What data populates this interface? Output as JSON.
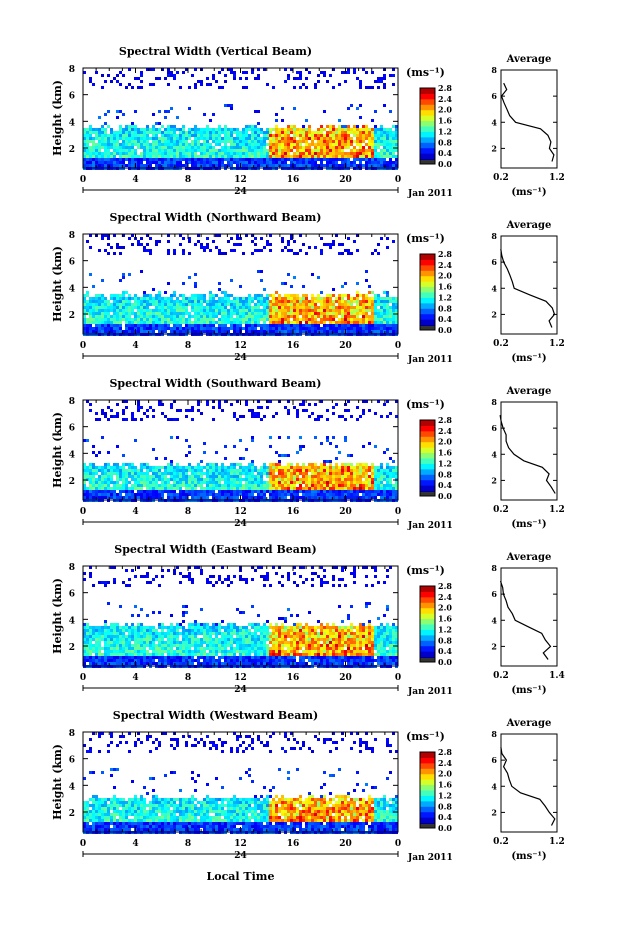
{
  "figure": {
    "x_axis_title": "Local Time",
    "colorbar_unit": "(ms⁻¹)",
    "avg_title": "Average",
    "avg_unit": "(ms⁻¹)",
    "date_label": "Jan 2011",
    "day_label": "24",
    "height_label": "Height (km)"
  },
  "chart_data": [
    {
      "type": "heatmap",
      "title": "Spectral Width (Vertical Beam)",
      "xlabel": "",
      "ylabel": "Height (km)",
      "xlim": [
        0,
        24
      ],
      "x_ticks": [
        "0",
        "4",
        "8",
        "12",
        "16",
        "20",
        "0"
      ],
      "ylim": [
        0.5,
        8
      ],
      "y_ticks": [
        "2",
        "4",
        "6",
        "8"
      ],
      "colorbar": {
        "ticks": [
          "0.0",
          "0.4",
          "0.8",
          "1.2",
          "1.6",
          "2.0",
          "2.4",
          "2.8"
        ],
        "range": [
          0,
          2.8
        ]
      },
      "echo_top_km": 3.7,
      "avg_profile": {
        "title": "Average",
        "xlim": [
          0.2,
          1.2
        ],
        "x_ticks": [
          "0.2",
          "1.2"
        ],
        "y_ticks": [
          "2",
          "4",
          "6",
          "8"
        ],
        "height_km": [
          1.0,
          1.5,
          2.0,
          2.5,
          3.0,
          3.5,
          4.0,
          4.5,
          5.0,
          5.5,
          6.0,
          6.5,
          7.0
        ],
        "width_ms": [
          1.1,
          1.15,
          1.05,
          1.1,
          1.05,
          0.9,
          0.45,
          0.35,
          0.3,
          0.25,
          0.2,
          0.3,
          0.25
        ]
      }
    },
    {
      "type": "heatmap",
      "title": "Spectral Width (Northward Beam)",
      "xlabel": "",
      "ylabel": "Height (km)",
      "xlim": [
        0,
        24
      ],
      "x_ticks": [
        "0",
        "4",
        "8",
        "12",
        "16",
        "20",
        "0"
      ],
      "ylim": [
        0.5,
        8
      ],
      "y_ticks": [
        "2",
        "4",
        "6",
        "8"
      ],
      "colorbar": {
        "ticks": [
          "0.0",
          "0.4",
          "0.8",
          "1.2",
          "1.6",
          "2.0",
          "2.4",
          "2.8"
        ],
        "range": [
          0,
          2.8
        ]
      },
      "echo_top_km": 3.6,
      "avg_profile": {
        "title": "Average",
        "xlim": [
          0.2,
          1.2
        ],
        "x_ticks": [
          "0.2",
          "1.2"
        ],
        "y_ticks": [
          "2",
          "4",
          "6",
          "8"
        ],
        "height_km": [
          1.0,
          1.5,
          2.0,
          2.5,
          3.0,
          3.5,
          4.0,
          4.5,
          5.0,
          5.5,
          6.0,
          6.5,
          7.0
        ],
        "width_ms": [
          1.1,
          1.05,
          1.15,
          1.1,
          1.0,
          0.7,
          0.45,
          0.4,
          0.35,
          0.3,
          0.25,
          0.2,
          0.2
        ]
      }
    },
    {
      "type": "heatmap",
      "title": "Spectral Width (Southward Beam)",
      "xlabel": "",
      "ylabel": "Height (km)",
      "xlim": [
        0,
        24
      ],
      "x_ticks": [
        "0",
        "4",
        "8",
        "12",
        "16",
        "20",
        "0"
      ],
      "ylim": [
        0.5,
        8
      ],
      "y_ticks": [
        "2",
        "4",
        "6",
        "8"
      ],
      "colorbar": {
        "ticks": [
          "0.0",
          "0.4",
          "0.8",
          "1.2",
          "1.6",
          "2.0",
          "2.4",
          "2.8"
        ],
        "range": [
          0,
          2.8
        ]
      },
      "echo_top_km": 3.3,
      "avg_profile": {
        "title": "Average",
        "xlim": [
          0.2,
          1.2
        ],
        "x_ticks": [
          "0.2",
          "1.2"
        ],
        "y_ticks": [
          "2",
          "4",
          "6",
          "8"
        ],
        "height_km": [
          1.0,
          1.5,
          2.0,
          2.5,
          3.0,
          3.5,
          4.0,
          4.5,
          5.0,
          5.5,
          6.0,
          6.5,
          7.0
        ],
        "width_ms": [
          1.15,
          1.1,
          1.0,
          1.05,
          0.95,
          0.6,
          0.45,
          0.35,
          0.3,
          0.3,
          0.25,
          0.2,
          0.2
        ]
      }
    },
    {
      "type": "heatmap",
      "title": "Spectral Width (Eastward Beam)",
      "xlabel": "",
      "ylabel": "Height (km)",
      "xlim": [
        0,
        24
      ],
      "x_ticks": [
        "0",
        "4",
        "8",
        "12",
        "16",
        "20",
        "0"
      ],
      "ylim": [
        0.5,
        8
      ],
      "y_ticks": [
        "2",
        "4",
        "6",
        "8"
      ],
      "colorbar": {
        "ticks": [
          "0.0",
          "0.4",
          "0.8",
          "1.2",
          "1.6",
          "2.0",
          "2.4",
          "2.8"
        ],
        "range": [
          0,
          2.8
        ]
      },
      "echo_top_km": 3.7,
      "avg_profile": {
        "title": "Average",
        "xlim": [
          0.2,
          1.4
        ],
        "x_ticks": [
          "0.2",
          "1.4"
        ],
        "y_ticks": [
          "2",
          "4",
          "6",
          "8"
        ],
        "height_km": [
          1.0,
          1.5,
          2.0,
          2.5,
          3.0,
          3.5,
          4.0,
          4.5,
          5.0,
          5.5,
          6.0,
          6.5,
          7.0
        ],
        "width_ms": [
          1.2,
          1.1,
          1.25,
          1.15,
          1.05,
          0.8,
          0.5,
          0.45,
          0.35,
          0.3,
          0.25,
          0.25,
          0.2
        ]
      }
    },
    {
      "type": "heatmap",
      "title": "Spectral Width (Westward Beam)",
      "xlabel": "Local Time",
      "ylabel": "Height (km)",
      "xlim": [
        0,
        24
      ],
      "x_ticks": [
        "0",
        "4",
        "8",
        "12",
        "16",
        "20",
        "0"
      ],
      "ylim": [
        0.5,
        8
      ],
      "y_ticks": [
        "2",
        "4",
        "6",
        "8"
      ],
      "colorbar": {
        "ticks": [
          "0.0",
          "0.4",
          "0.8",
          "1.2",
          "1.6",
          "2.0",
          "2.4",
          "2.8"
        ],
        "range": [
          0,
          2.8
        ]
      },
      "echo_top_km": 3.2,
      "avg_profile": {
        "title": "Average",
        "xlim": [
          0.2,
          1.2
        ],
        "x_ticks": [
          "0.2",
          "1.2"
        ],
        "y_ticks": [
          "2",
          "4",
          "6",
          "8"
        ],
        "height_km": [
          1.0,
          1.5,
          2.0,
          2.5,
          3.0,
          3.5,
          4.0,
          4.5,
          5.0,
          5.5,
          6.0,
          6.5,
          7.0
        ],
        "width_ms": [
          1.1,
          1.15,
          1.05,
          1.0,
          0.9,
          0.55,
          0.4,
          0.35,
          0.3,
          0.25,
          0.3,
          0.2,
          0.2
        ]
      }
    }
  ]
}
